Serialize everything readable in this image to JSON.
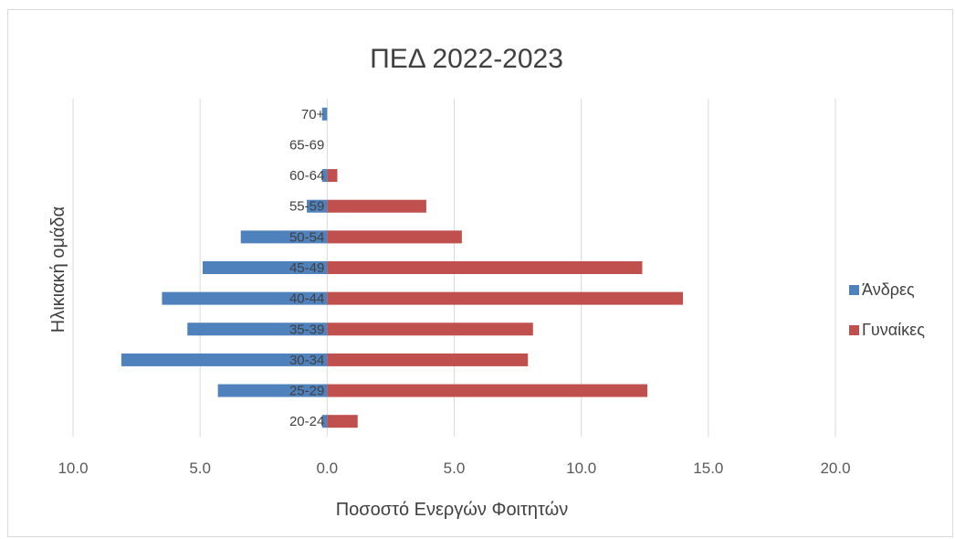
{
  "chart_data": {
    "type": "bar",
    "orientation": "horizontal-population-pyramid",
    "title": "ΠΕΔ 2022-2023",
    "xlabel": "Ποσοστό Ενεργών Φοιτητών",
    "ylabel": "Ηλικιακή ομάδα",
    "categories": [
      "20-24",
      "25-29",
      "30-34",
      "35-39",
      "40-44",
      "45-49",
      "50-54",
      "55-59",
      "60-64",
      "65-69",
      "70+"
    ],
    "series": [
      {
        "name": "Άνδρες",
        "color": "#4f81bd",
        "values": [
          0.2,
          4.3,
          8.1,
          5.5,
          6.5,
          4.9,
          3.4,
          0.8,
          0.2,
          0.0,
          0.2
        ]
      },
      {
        "name": "Γυναίκες",
        "color": "#c0504d",
        "values": [
          1.2,
          12.6,
          7.9,
          8.1,
          14.0,
          12.4,
          5.3,
          3.9,
          0.4,
          0.0,
          0.0
        ]
      }
    ],
    "xlim": [
      -10,
      20
    ],
    "xticks": [
      -10,
      -5,
      0,
      5,
      10,
      15,
      20
    ],
    "xtick_labels": [
      "10.0",
      "5.0",
      "0.0",
      "5.0",
      "10.0",
      "15.0",
      "20.0"
    ],
    "grid": "vertical",
    "legend_position": "right",
    "gridline_color": "#d9d9d9"
  }
}
